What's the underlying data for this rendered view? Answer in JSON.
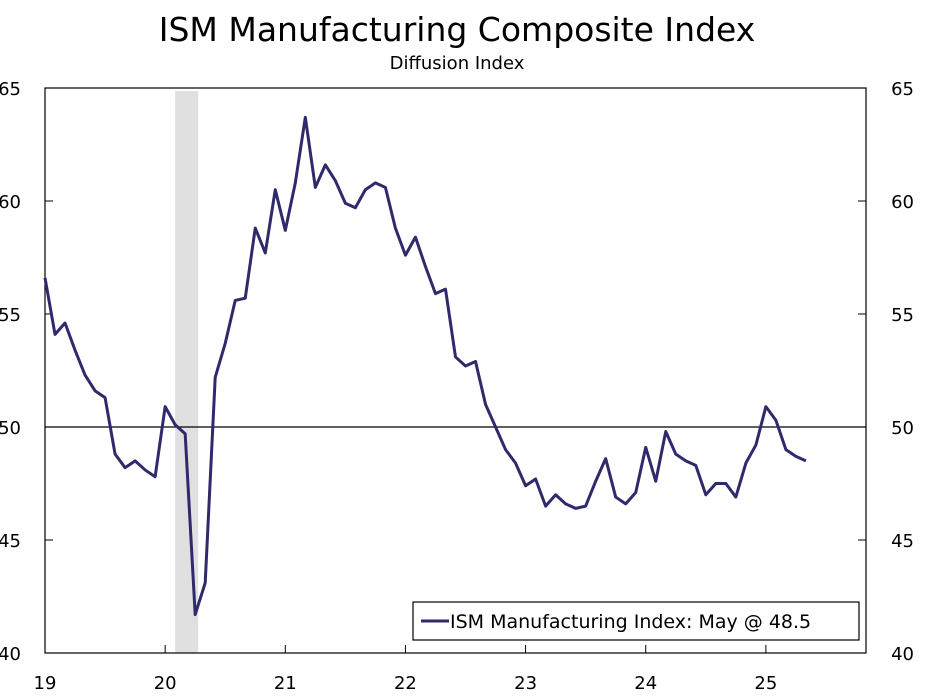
{
  "chart_data": {
    "type": "line",
    "title": "ISM Manufacturing Composite Index",
    "subtitle": "Diffusion Index",
    "ylim": [
      40,
      65
    ],
    "yticks": [
      40,
      45,
      50,
      55,
      60,
      65
    ],
    "xtick_labels": [
      "19",
      "20",
      "21",
      "22",
      "23",
      "24",
      "25"
    ],
    "x_start": "2019-01",
    "x_end": "2025-05",
    "reference_line": 50,
    "recession_shading": {
      "start": "2020-02",
      "end": "2020-04",
      "color": "#e0e0e0"
    },
    "legend": {
      "label": "ISM Manufacturing Index: May @ 48.5",
      "placement": "bottom-right"
    },
    "grid": false,
    "series": [
      {
        "name": "ISM Manufacturing Index",
        "color": "#2e2a6b",
        "values": [
          56.6,
          54.1,
          54.6,
          53.4,
          52.3,
          51.6,
          51.3,
          48.8,
          48.2,
          48.5,
          48.1,
          47.8,
          50.9,
          50.1,
          49.7,
          41.7,
          43.1,
          52.2,
          53.7,
          55.6,
          55.7,
          58.8,
          57.7,
          60.5,
          58.7,
          60.8,
          63.7,
          60.6,
          61.6,
          60.9,
          59.9,
          59.7,
          60.5,
          60.8,
          60.6,
          58.8,
          57.6,
          58.4,
          57.1,
          55.9,
          56.1,
          53.1,
          52.7,
          52.9,
          51.0,
          50.0,
          49.0,
          48.4,
          47.4,
          47.7,
          46.5,
          47.0,
          46.6,
          46.4,
          46.5,
          47.6,
          48.6,
          46.9,
          46.6,
          47.1,
          49.1,
          47.6,
          49.8,
          48.8,
          48.5,
          48.3,
          47.0,
          47.5,
          47.5,
          46.9,
          48.4,
          49.2,
          50.9,
          50.3,
          49.0,
          48.7,
          48.5
        ]
      }
    ]
  }
}
